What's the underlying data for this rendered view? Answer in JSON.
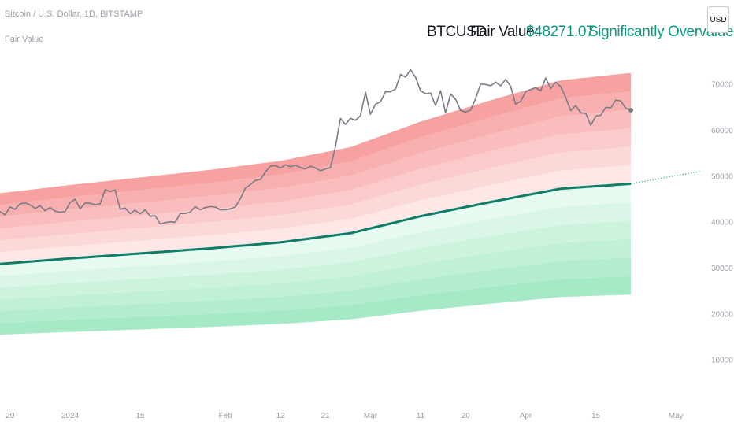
{
  "header": {
    "symbol_line": "Bitcoin / U.S. Dollar, 1D, BITSTAMP",
    "indicator_line": "Fair Value"
  },
  "info": {
    "symbol": "BTCUSD",
    "fair_value_label": "Fair Value:",
    "fair_value": "$48271.07",
    "status": "Significantly Overvalued"
  },
  "currency_button": "USD",
  "colors": {
    "price": "#787b86",
    "fair_value": "#0b7d68",
    "over_band": "#f7a1a1",
    "under_band": "#a6e9c6"
  },
  "chart_data": {
    "type": "line",
    "ylim": [
      0,
      78000
    ],
    "y_ticks": [
      10000,
      20000,
      30000,
      40000,
      50000,
      60000,
      70000
    ],
    "x_ticks": [
      {
        "label": "20",
        "day": -12
      },
      {
        "label": "2024",
        "day": 0
      },
      {
        "label": "15",
        "day": 14
      },
      {
        "label": "Feb",
        "day": 31
      },
      {
        "label": "12",
        "day": 42
      },
      {
        "label": "21",
        "day": 51
      },
      {
        "label": "Mar",
        "day": 60
      },
      {
        "label": "11",
        "day": 70
      },
      {
        "label": "20",
        "day": 79
      },
      {
        "label": "Apr",
        "day": 91
      },
      {
        "label": "15",
        "day": 105
      },
      {
        "label": "May",
        "day": 121
      }
    ],
    "x_range": [
      -14,
      126
    ],
    "price": [
      [
        -14,
        42200
      ],
      [
        -13,
        41500
      ],
      [
        -12,
        43200
      ],
      [
        -11,
        42700
      ],
      [
        -10,
        43900
      ],
      [
        -9,
        44100
      ],
      [
        -8,
        43700
      ],
      [
        -7,
        42900
      ],
      [
        -6,
        43500
      ],
      [
        -5,
        42400
      ],
      [
        -4,
        43100
      ],
      [
        -3,
        42300
      ],
      [
        -2,
        42100
      ],
      [
        -1,
        42200
      ],
      [
        0,
        44200
      ],
      [
        1,
        44900
      ],
      [
        2,
        42800
      ],
      [
        3,
        44100
      ],
      [
        4,
        44000
      ],
      [
        5,
        43700
      ],
      [
        6,
        43900
      ],
      [
        7,
        47000
      ],
      [
        8,
        46600
      ],
      [
        9,
        46900
      ],
      [
        10,
        42700
      ],
      [
        11,
        43000
      ],
      [
        12,
        41800
      ],
      [
        13,
        42500
      ],
      [
        14,
        41700
      ],
      [
        15,
        42600
      ],
      [
        16,
        41200
      ],
      [
        17,
        41300
      ],
      [
        18,
        39500
      ],
      [
        19,
        39800
      ],
      [
        20,
        40000
      ],
      [
        21,
        39900
      ],
      [
        22,
        41800
      ],
      [
        23,
        41800
      ],
      [
        24,
        42100
      ],
      [
        25,
        43300
      ],
      [
        26,
        42600
      ],
      [
        27,
        43100
      ],
      [
        28,
        43300
      ],
      [
        29,
        43200
      ],
      [
        30,
        42600
      ],
      [
        31,
        42600
      ],
      [
        32,
        42800
      ],
      [
        33,
        43200
      ],
      [
        34,
        45000
      ],
      [
        35,
        47300
      ],
      [
        36,
        48100
      ],
      [
        37,
        49000
      ],
      [
        38,
        49200
      ],
      [
        39,
        50800
      ],
      [
        40,
        52100
      ],
      [
        41,
        52200
      ],
      [
        42,
        51700
      ],
      [
        43,
        52400
      ],
      [
        44,
        52000
      ],
      [
        45,
        52300
      ],
      [
        46,
        51800
      ],
      [
        47,
        51500
      ],
      [
        48,
        52100
      ],
      [
        49,
        51700
      ],
      [
        50,
        51100
      ],
      [
        51,
        51500
      ],
      [
        52,
        51800
      ],
      [
        53,
        56300
      ],
      [
        54,
        62500
      ],
      [
        55,
        61200
      ],
      [
        56,
        62500
      ],
      [
        57,
        62100
      ],
      [
        58,
        63100
      ],
      [
        59,
        68200
      ],
      [
        60,
        63400
      ],
      [
        61,
        65600
      ],
      [
        62,
        66100
      ],
      [
        63,
        68300
      ],
      [
        64,
        68300
      ],
      [
        65,
        68900
      ],
      [
        66,
        72100
      ],
      [
        67,
        71500
      ],
      [
        68,
        73100
      ],
      [
        69,
        71500
      ],
      [
        70,
        68500
      ],
      [
        71,
        67900
      ],
      [
        72,
        68000
      ],
      [
        73,
        65300
      ],
      [
        74,
        68500
      ],
      [
        75,
        63700
      ],
      [
        76,
        67800
      ],
      [
        77,
        66700
      ],
      [
        78,
        64200
      ],
      [
        79,
        63900
      ],
      [
        80,
        64300
      ],
      [
        81,
        66800
      ],
      [
        82,
        70000
      ],
      [
        83,
        69900
      ],
      [
        84,
        69600
      ],
      [
        85,
        70400
      ],
      [
        86,
        69600
      ],
      [
        87,
        71000
      ],
      [
        88,
        69500
      ],
      [
        89,
        65600
      ],
      [
        90,
        66200
      ],
      [
        91,
        68300
      ],
      [
        92,
        68800
      ],
      [
        93,
        69200
      ],
      [
        94,
        68500
      ],
      [
        95,
        71300
      ],
      [
        96,
        69000
      ],
      [
        97,
        70400
      ],
      [
        98,
        69400
      ],
      [
        99,
        67000
      ],
      [
        100,
        64200
      ],
      [
        101,
        65300
      ],
      [
        102,
        63700
      ],
      [
        103,
        63600
      ],
      [
        104,
        61000
      ],
      [
        105,
        63000
      ],
      [
        106,
        63200
      ],
      [
        107,
        64900
      ],
      [
        108,
        64800
      ],
      [
        109,
        66500
      ],
      [
        110,
        66300
      ],
      [
        111,
        64700
      ],
      [
        112,
        64300
      ]
    ],
    "fair_value": [
      [
        -14,
        30800
      ],
      [
        0,
        32000
      ],
      [
        14,
        33100
      ],
      [
        28,
        34200
      ],
      [
        42,
        35500
      ],
      [
        56,
        37500
      ],
      [
        70,
        41200
      ],
      [
        84,
        44300
      ],
      [
        98,
        47200
      ],
      [
        112,
        48271
      ]
    ],
    "fair_value_projection": [
      [
        112,
        48271
      ],
      [
        126,
        51000
      ]
    ],
    "upper_band_multiplier": 1.5,
    "lower_band_multiplier": 0.5,
    "band_steps": 6
  }
}
